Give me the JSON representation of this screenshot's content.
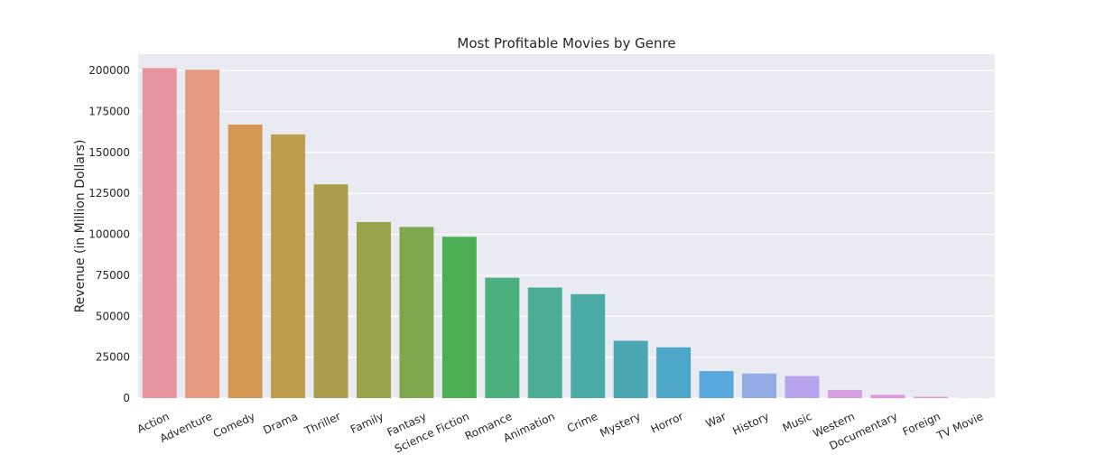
{
  "chart_data": {
    "type": "bar",
    "title": "Most Profitable Movies by Genre",
    "xlabel": "",
    "ylabel": "Revenue (in Million Dollars)",
    "ylim": [
      0,
      210000
    ],
    "yticks": [
      0,
      25000,
      50000,
      75000,
      100000,
      125000,
      150000,
      175000,
      200000
    ],
    "grid": true,
    "categories": [
      "Action",
      "Adventure",
      "Comedy",
      "Drama",
      "Thriller",
      "Family",
      "Fantasy",
      "Science Fiction",
      "Romance",
      "Animation",
      "Crime",
      "Mystery",
      "Horror",
      "War",
      "History",
      "Music",
      "Western",
      "Documentary",
      "Foreign",
      "TV Movie"
    ],
    "values": [
      201500,
      200500,
      167000,
      161000,
      130500,
      107500,
      104500,
      98500,
      73500,
      67500,
      63500,
      35000,
      31000,
      16500,
      15000,
      13500,
      5000,
      2000,
      800,
      100
    ],
    "colors": [
      "#e8949f",
      "#e59a80",
      "#d59654",
      "#bf9d4c",
      "#aa9e4c",
      "#9aa34b",
      "#7fa84d",
      "#4caf53",
      "#4baf7e",
      "#4aad94",
      "#4aaaa4",
      "#4ba6b4",
      "#4ba6c8",
      "#58a7dd",
      "#94ace6",
      "#b8a4ec",
      "#d89ee4",
      "#e294dd",
      "#e694cd",
      "#e896bd"
    ],
    "background": "#eaeaf2"
  }
}
